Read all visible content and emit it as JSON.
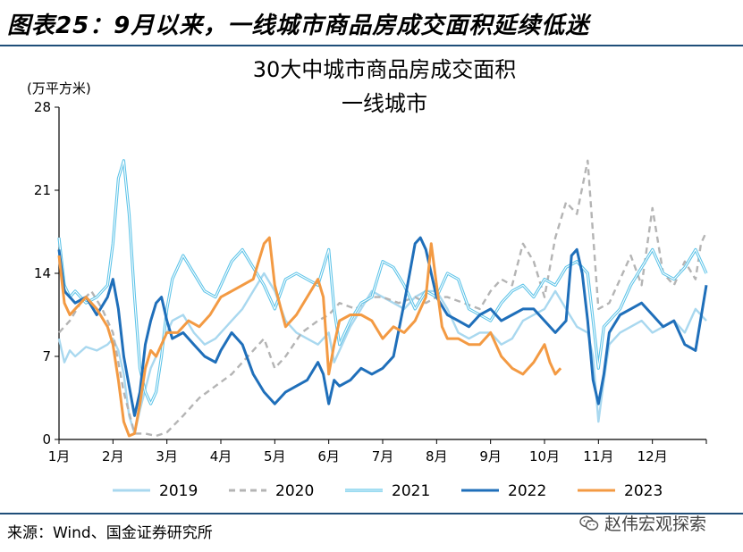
{
  "figure": {
    "title": "图表25：9月以来，一线城市商品房成交面积延续低迷",
    "source": "来源：Wind、国金证券研究所",
    "watermark": "赵伟宏观探索",
    "watermark_icon": "wechat-icon"
  },
  "chart_data": {
    "type": "line",
    "title": "30大中城市商品房成交面积",
    "subtitle": "一线城市",
    "ylabel": "(万平方米)",
    "ylim": [
      0,
      28
    ],
    "yticks": [
      0,
      7,
      14,
      21,
      28
    ],
    "ytick_labels": [
      "0",
      "7",
      "14",
      "21",
      "28"
    ],
    "xlim": [
      0,
      12
    ],
    "xticks": [
      0,
      1,
      2,
      3,
      4,
      5,
      6,
      7,
      8,
      9,
      10,
      11
    ],
    "xtick_labels": [
      "1月",
      "2月",
      "3月",
      "4月",
      "5月",
      "6月",
      "7月",
      "8月",
      "9月",
      "10月",
      "11月",
      "12月"
    ],
    "grid": false,
    "legend_position": "bottom",
    "series": [
      {
        "name": "2019",
        "color": "#a9d8ef",
        "style": "solid",
        "x": [
          0,
          0.1,
          0.2,
          0.3,
          0.5,
          0.7,
          0.9,
          1.0,
          1.1,
          1.2,
          1.3,
          1.4,
          1.5,
          1.7,
          1.9,
          2.0,
          2.1,
          2.3,
          2.5,
          2.7,
          2.9,
          3.0,
          3.2,
          3.4,
          3.6,
          3.8,
          4.0,
          4.2,
          4.4,
          4.6,
          4.8,
          5.0,
          5.1,
          5.2,
          5.4,
          5.6,
          5.8,
          6.0,
          6.2,
          6.4,
          6.6,
          6.8,
          7.0,
          7.2,
          7.4,
          7.6,
          7.8,
          8.0,
          8.2,
          8.4,
          8.6,
          8.8,
          9.0,
          9.2,
          9.4,
          9.6,
          9.8,
          9.9,
          10.0,
          10.1,
          10.2,
          10.4,
          10.6,
          10.8,
          11.0,
          11.2,
          11.4,
          11.6,
          11.8,
          12.0
        ],
        "values": [
          8.5,
          6.5,
          7.5,
          7.0,
          7.8,
          7.5,
          8.0,
          8.5,
          7.5,
          5.5,
          2.0,
          0.5,
          2.5,
          6.0,
          8.0,
          9.0,
          10.0,
          10.5,
          9.0,
          8.0,
          8.5,
          9.0,
          10.0,
          11.0,
          12.5,
          14.0,
          12.5,
          10.0,
          9.0,
          8.5,
          8.0,
          9.0,
          6.5,
          7.5,
          9.5,
          11.0,
          12.5,
          12.0,
          11.5,
          11.0,
          12.0,
          12.5,
          12.5,
          11.0,
          9.0,
          8.5,
          9.0,
          9.0,
          8.0,
          8.5,
          10.0,
          10.5,
          11.0,
          12.5,
          11.0,
          9.5,
          9.0,
          7.0,
          1.5,
          5.0,
          8.0,
          9.0,
          9.5,
          10.0,
          9.0,
          9.5,
          10.0,
          9.0,
          11.0,
          10.0
        ]
      },
      {
        "name": "2020",
        "color": "#b4b4b4",
        "style": "dashed",
        "x": [
          0,
          0.2,
          0.4,
          0.6,
          0.8,
          1.0,
          1.2,
          1.4,
          1.6,
          1.8,
          2.0,
          2.3,
          2.6,
          2.9,
          3.2,
          3.5,
          3.8,
          4.0,
          4.2,
          4.5,
          4.8,
          5.0,
          5.2,
          5.5,
          5.8,
          6.0,
          6.3,
          6.6,
          6.8,
          7.0,
          7.2,
          7.5,
          7.8,
          8.0,
          8.2,
          8.4,
          8.6,
          8.8,
          9.0,
          9.2,
          9.4,
          9.6,
          9.8,
          10.0,
          10.2,
          10.4,
          10.6,
          10.8,
          11.0,
          11.2,
          11.4,
          11.6,
          11.8,
          11.9,
          12.0
        ],
        "values": [
          9.0,
          10.0,
          11.5,
          12.5,
          11.0,
          9.0,
          4.0,
          0.5,
          0.5,
          0.3,
          0.6,
          2.0,
          3.5,
          4.5,
          5.5,
          7.0,
          8.5,
          6.0,
          7.0,
          9.0,
          10.0,
          10.5,
          11.5,
          11.0,
          12.0,
          12.0,
          11.5,
          12.0,
          11.5,
          12.0,
          12.0,
          11.5,
          11.0,
          12.5,
          13.5,
          13.0,
          16.5,
          15.0,
          12.0,
          17.0,
          20.0,
          19.0,
          23.5,
          11.0,
          11.5,
          13.5,
          15.5,
          13.0,
          19.5,
          14.0,
          13.0,
          15.0,
          13.5,
          16.5,
          17.5
        ]
      },
      {
        "name": "2021",
        "color": "#5cc3e8",
        "style": "double",
        "x": [
          0,
          0.1,
          0.2,
          0.3,
          0.5,
          0.7,
          0.9,
          1.0,
          1.1,
          1.2,
          1.3,
          1.4,
          1.5,
          1.6,
          1.7,
          1.8,
          1.9,
          2.0,
          2.1,
          2.3,
          2.5,
          2.7,
          2.9,
          3.0,
          3.2,
          3.4,
          3.6,
          3.8,
          4.0,
          4.2,
          4.4,
          4.6,
          4.8,
          5.0,
          5.1,
          5.2,
          5.4,
          5.6,
          5.8,
          6.0,
          6.2,
          6.4,
          6.6,
          6.8,
          7.0,
          7.2,
          7.4,
          7.6,
          7.8,
          8.0,
          8.2,
          8.4,
          8.6,
          8.8,
          9.0,
          9.2,
          9.4,
          9.6,
          9.8,
          9.9,
          10.0,
          10.1,
          10.2,
          10.4,
          10.6,
          10.8,
          11.0,
          11.2,
          11.4,
          11.6,
          11.8,
          12.0
        ],
        "values": [
          17.0,
          13.0,
          12.0,
          12.5,
          11.5,
          12.0,
          13.0,
          16.5,
          22.0,
          23.5,
          19.0,
          12.0,
          6.0,
          4.0,
          3.0,
          4.0,
          7.0,
          11.0,
          13.5,
          15.5,
          14.0,
          12.5,
          12.0,
          13.0,
          15.0,
          16.0,
          14.5,
          13.0,
          11.0,
          13.5,
          14.0,
          13.5,
          13.0,
          16.0,
          11.0,
          8.0,
          10.0,
          11.5,
          12.0,
          15.0,
          14.5,
          13.0,
          11.0,
          12.5,
          12.0,
          14.0,
          13.5,
          11.0,
          10.5,
          10.0,
          11.5,
          12.5,
          13.0,
          12.0,
          13.5,
          13.0,
          14.5,
          15.0,
          14.0,
          10.0,
          6.0,
          9.5,
          10.0,
          11.0,
          13.0,
          14.5,
          16.0,
          14.0,
          13.5,
          14.5,
          16.0,
          14.0
        ]
      },
      {
        "name": "2022",
        "color": "#1f6fba",
        "style": "solid",
        "x": [
          0,
          0.1,
          0.2,
          0.3,
          0.5,
          0.7,
          0.9,
          1.0,
          1.1,
          1.2,
          1.3,
          1.4,
          1.5,
          1.6,
          1.7,
          1.8,
          1.9,
          2.0,
          2.1,
          2.3,
          2.5,
          2.7,
          2.9,
          3.0,
          3.2,
          3.4,
          3.6,
          3.8,
          4.0,
          4.2,
          4.4,
          4.6,
          4.8,
          4.9,
          5.0,
          5.1,
          5.2,
          5.4,
          5.6,
          5.8,
          6.0,
          6.2,
          6.4,
          6.5,
          6.6,
          6.7,
          6.8,
          6.9,
          7.0,
          7.2,
          7.4,
          7.6,
          7.8,
          8.0,
          8.2,
          8.4,
          8.6,
          8.8,
          9.0,
          9.2,
          9.4,
          9.5,
          9.6,
          9.7,
          9.8,
          9.9,
          10.0,
          10.1,
          10.2,
          10.4,
          10.6,
          10.8,
          11.0,
          11.2,
          11.4,
          11.6,
          11.8,
          12.0
        ],
        "values": [
          16.0,
          12.5,
          12.0,
          11.5,
          12.0,
          10.5,
          12.0,
          13.5,
          11.0,
          7.0,
          4.5,
          2.0,
          4.0,
          8.0,
          10.0,
          11.5,
          12.0,
          10.0,
          8.5,
          9.0,
          8.0,
          7.0,
          6.5,
          7.5,
          9.0,
          8.0,
          5.5,
          4.0,
          3.0,
          4.0,
          4.5,
          5.0,
          6.5,
          5.5,
          3.0,
          5.0,
          4.5,
          5.0,
          6.0,
          5.5,
          6.0,
          7.0,
          11.5,
          14.0,
          16.5,
          17.0,
          16.0,
          14.0,
          12.0,
          10.5,
          10.0,
          9.5,
          10.5,
          11.0,
          10.0,
          10.5,
          11.0,
          11.0,
          10.0,
          9.0,
          10.0,
          15.5,
          16.0,
          14.0,
          10.0,
          5.0,
          3.0,
          5.5,
          9.0,
          10.5,
          11.0,
          11.5,
          10.5,
          9.5,
          10.0,
          8.0,
          7.5,
          13.0
        ]
      },
      {
        "name": "2023",
        "color": "#f39a43",
        "style": "solid",
        "x": [
          0,
          0.1,
          0.2,
          0.3,
          0.5,
          0.7,
          0.9,
          1.0,
          1.1,
          1.2,
          1.3,
          1.4,
          1.5,
          1.6,
          1.7,
          1.8,
          1.9,
          2.0,
          2.2,
          2.4,
          2.6,
          2.8,
          3.0,
          3.2,
          3.4,
          3.6,
          3.8,
          3.9,
          4.0,
          4.2,
          4.4,
          4.6,
          4.8,
          4.9,
          5.0,
          5.1,
          5.2,
          5.4,
          5.6,
          5.8,
          6.0,
          6.2,
          6.4,
          6.6,
          6.8,
          6.9,
          7.0,
          7.1,
          7.2,
          7.4,
          7.6,
          7.8,
          8.0,
          8.2,
          8.4,
          8.6,
          8.8,
          9.0,
          9.1,
          9.2,
          9.3
        ],
        "values": [
          15.5,
          11.5,
          10.5,
          11.0,
          12.0,
          11.0,
          9.5,
          8.0,
          5.0,
          1.5,
          0.3,
          0.5,
          3.0,
          6.0,
          7.5,
          7.0,
          8.0,
          9.0,
          9.0,
          10.0,
          9.5,
          10.5,
          12.0,
          12.5,
          13.0,
          13.5,
          16.5,
          17.0,
          13.0,
          9.5,
          10.5,
          12.0,
          13.5,
          12.0,
          5.5,
          8.0,
          10.0,
          10.5,
          10.5,
          10.0,
          8.5,
          9.5,
          9.0,
          10.0,
          12.0,
          16.5,
          13.0,
          9.5,
          8.5,
          8.5,
          8.0,
          8.0,
          9.0,
          7.0,
          6.0,
          5.5,
          6.5,
          8.0,
          6.5,
          5.5,
          6.0
        ]
      }
    ]
  }
}
